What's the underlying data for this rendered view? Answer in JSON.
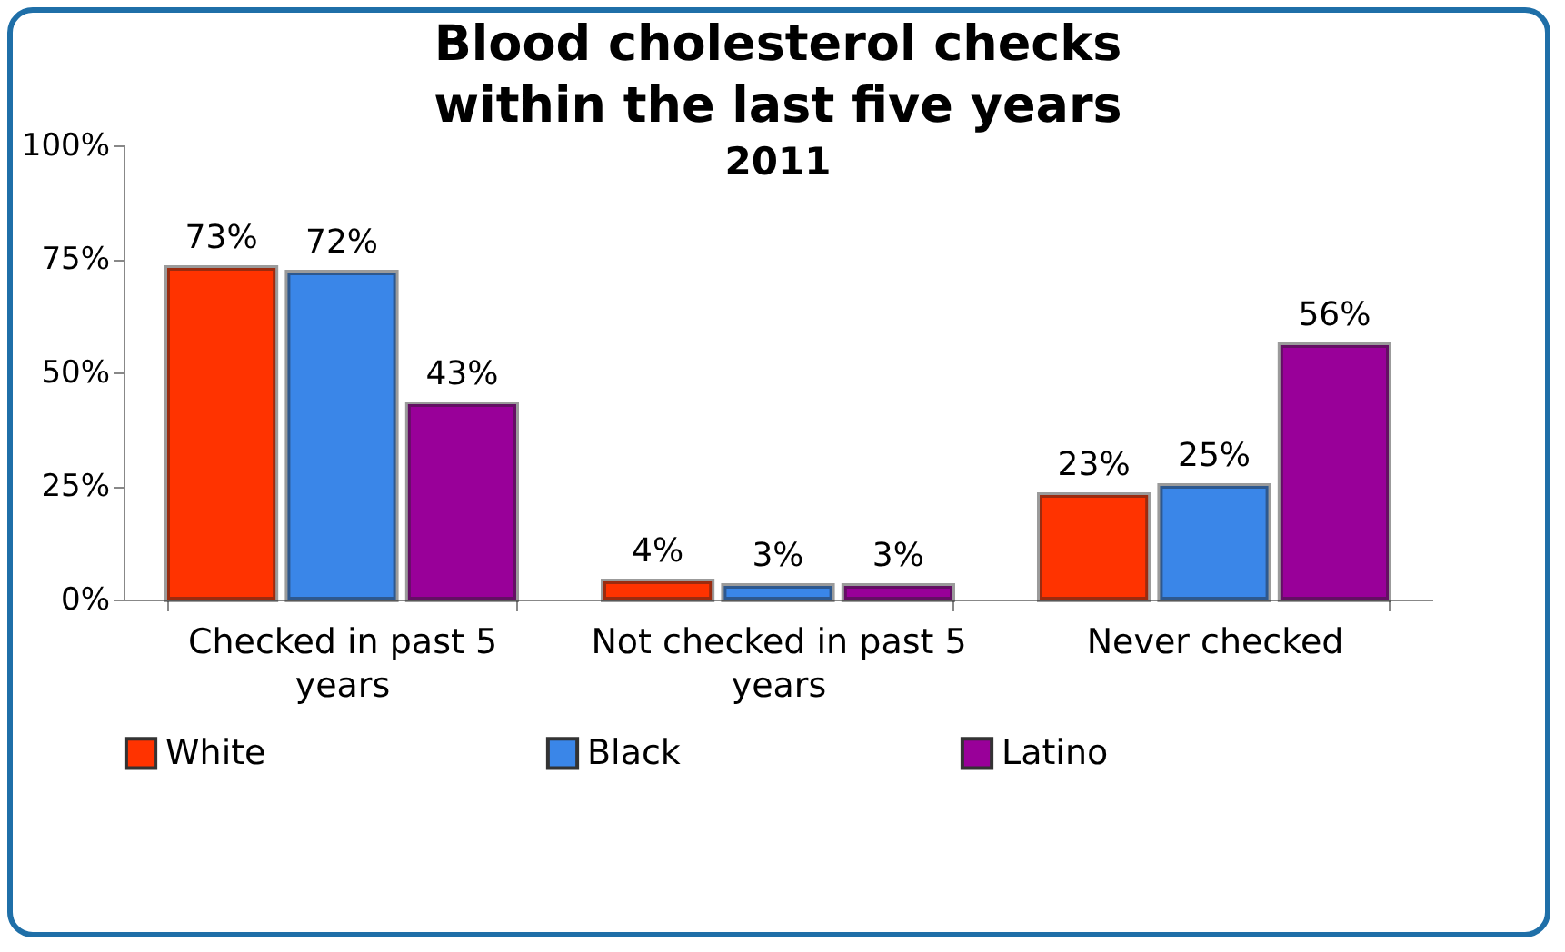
{
  "chart_data": {
    "type": "bar",
    "title": "Blood cholesterol checks within the last five years",
    "subtitle": "2011",
    "categories": [
      "Checked in past 5 years",
      "Not checked in past 5 years",
      "Never checked"
    ],
    "series": [
      {
        "name": "White",
        "color": "#ff3300",
        "values": [
          73,
          4,
          23
        ],
        "value_labels": [
          "73%",
          "4%",
          "23%"
        ]
      },
      {
        "name": "Black",
        "color": "#3a86e8",
        "values": [
          72,
          3,
          25
        ],
        "value_labels": [
          "72%",
          "3%",
          "25%"
        ]
      },
      {
        "name": "Latino",
        "color": "#990099",
        "values": [
          43,
          3,
          56
        ],
        "value_labels": [
          "43%",
          "3%",
          "56%"
        ]
      }
    ],
    "ylim": [
      0,
      100
    ],
    "yticks": [
      {
        "value": 0,
        "label": "0%"
      },
      {
        "value": 25,
        "label": "25%"
      },
      {
        "value": 50,
        "label": "50%"
      },
      {
        "value": 75,
        "label": "75%"
      },
      {
        "value": 100,
        "label": "100%"
      }
    ],
    "legend": "bottom"
  }
}
